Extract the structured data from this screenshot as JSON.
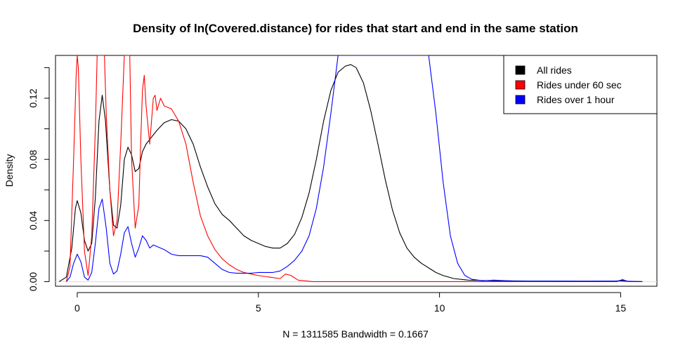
{
  "chart_data": {
    "type": "line",
    "title": "Density of ln(Covered.distance) for rides that start and end in the same station",
    "xlabel": "N = 1311585   Bandwidth = 0.1667",
    "ylabel": "Density",
    "xlim": [
      -0.6,
      16.0
    ],
    "ylim": [
      -0.003,
      0.148
    ],
    "x_ticks": [
      0,
      5,
      10,
      15
    ],
    "x_tick_labels": [
      "0",
      "5",
      "10",
      "15"
    ],
    "y_ticks": [
      0.0,
      0.04,
      0.08,
      0.12
    ],
    "y_tick_labels": [
      "0.00",
      "0.04",
      "0.08",
      "0.12"
    ],
    "grid": false,
    "legend_position": "top-right",
    "series": [
      {
        "name": "All rides",
        "color": "#000000",
        "points": [
          [
            -0.5,
            0.0
          ],
          [
            -0.3,
            0.003
          ],
          [
            -0.15,
            0.022
          ],
          [
            -0.05,
            0.048
          ],
          [
            0.0,
            0.053
          ],
          [
            0.1,
            0.045
          ],
          [
            0.2,
            0.027
          ],
          [
            0.3,
            0.02
          ],
          [
            0.4,
            0.025
          ],
          [
            0.5,
            0.055
          ],
          [
            0.6,
            0.105
          ],
          [
            0.69,
            0.122
          ],
          [
            0.78,
            0.105
          ],
          [
            0.9,
            0.06
          ],
          [
            1.0,
            0.037
          ],
          [
            1.1,
            0.035
          ],
          [
            1.2,
            0.05
          ],
          [
            1.3,
            0.08
          ],
          [
            1.4,
            0.088
          ],
          [
            1.5,
            0.083
          ],
          [
            1.6,
            0.072
          ],
          [
            1.7,
            0.074
          ],
          [
            1.8,
            0.085
          ],
          [
            1.9,
            0.09
          ],
          [
            2.0,
            0.093
          ],
          [
            2.2,
            0.099
          ],
          [
            2.4,
            0.104
          ],
          [
            2.6,
            0.106
          ],
          [
            2.8,
            0.105
          ],
          [
            3.0,
            0.1
          ],
          [
            3.2,
            0.09
          ],
          [
            3.4,
            0.075
          ],
          [
            3.6,
            0.062
          ],
          [
            3.8,
            0.051
          ],
          [
            4.0,
            0.044
          ],
          [
            4.2,
            0.04
          ],
          [
            4.4,
            0.035
          ],
          [
            4.6,
            0.03
          ],
          [
            4.8,
            0.027
          ],
          [
            5.0,
            0.025
          ],
          [
            5.2,
            0.023
          ],
          [
            5.4,
            0.022
          ],
          [
            5.6,
            0.022
          ],
          [
            5.8,
            0.025
          ],
          [
            6.0,
            0.031
          ],
          [
            6.2,
            0.042
          ],
          [
            6.4,
            0.058
          ],
          [
            6.6,
            0.08
          ],
          [
            6.8,
            0.105
          ],
          [
            7.0,
            0.125
          ],
          [
            7.2,
            0.137
          ],
          [
            7.4,
            0.141
          ],
          [
            7.55,
            0.142
          ],
          [
            7.7,
            0.14
          ],
          [
            7.9,
            0.13
          ],
          [
            8.1,
            0.112
          ],
          [
            8.3,
            0.09
          ],
          [
            8.5,
            0.067
          ],
          [
            8.7,
            0.047
          ],
          [
            8.9,
            0.032
          ],
          [
            9.1,
            0.022
          ],
          [
            9.3,
            0.016
          ],
          [
            9.5,
            0.012
          ],
          [
            9.7,
            0.009
          ],
          [
            9.9,
            0.006
          ],
          [
            10.1,
            0.004
          ],
          [
            10.4,
            0.002
          ],
          [
            10.8,
            0.001
          ],
          [
            11.5,
            0.0006
          ],
          [
            12.5,
            0.0004
          ],
          [
            13.5,
            0.0003
          ],
          [
            14.5,
            0.0003
          ],
          [
            15.0,
            0.0005
          ],
          [
            15.2,
            0.0002
          ],
          [
            15.6,
            0.0
          ]
        ]
      },
      {
        "name": "Rides under 60 sec",
        "color": "#ff0000",
        "points": [
          [
            -0.3,
            0.0
          ],
          [
            -0.2,
            0.01
          ],
          [
            -0.1,
            0.08
          ],
          [
            -0.03,
            0.135
          ],
          [
            0.0,
            0.148
          ],
          [
            0.03,
            0.14
          ],
          [
            0.1,
            0.08
          ],
          [
            0.2,
            0.02
          ],
          [
            0.3,
            0.004
          ],
          [
            0.4,
            0.03
          ],
          [
            0.5,
            0.1
          ],
          [
            0.55,
            0.148
          ],
          [
            0.75,
            0.148
          ],
          [
            0.8,
            0.11
          ],
          [
            0.9,
            0.06
          ],
          [
            1.0,
            0.03
          ],
          [
            1.1,
            0.04
          ],
          [
            1.2,
            0.09
          ],
          [
            1.3,
            0.148
          ],
          [
            1.45,
            0.148
          ],
          [
            1.5,
            0.08
          ],
          [
            1.6,
            0.035
          ],
          [
            1.7,
            0.05
          ],
          [
            1.75,
            0.09
          ],
          [
            1.8,
            0.125
          ],
          [
            1.85,
            0.135
          ],
          [
            1.9,
            0.115
          ],
          [
            2.0,
            0.09
          ],
          [
            2.05,
            0.105
          ],
          [
            2.1,
            0.12
          ],
          [
            2.15,
            0.122
          ],
          [
            2.2,
            0.112
          ],
          [
            2.3,
            0.12
          ],
          [
            2.4,
            0.115
          ],
          [
            2.5,
            0.114
          ],
          [
            2.6,
            0.113
          ],
          [
            2.8,
            0.105
          ],
          [
            3.0,
            0.09
          ],
          [
            3.2,
            0.065
          ],
          [
            3.4,
            0.043
          ],
          [
            3.6,
            0.03
          ],
          [
            3.8,
            0.021
          ],
          [
            4.0,
            0.015
          ],
          [
            4.2,
            0.011
          ],
          [
            4.4,
            0.008
          ],
          [
            4.6,
            0.006
          ],
          [
            4.8,
            0.005
          ],
          [
            5.0,
            0.004
          ],
          [
            5.3,
            0.003
          ],
          [
            5.6,
            0.002
          ],
          [
            5.75,
            0.005
          ],
          [
            5.9,
            0.004
          ],
          [
            6.1,
            0.001
          ],
          [
            6.5,
            0.0
          ],
          [
            10.0,
            0.0
          ],
          [
            14.9,
            0.0
          ],
          [
            15.05,
            0.0015
          ],
          [
            15.2,
            0.0
          ],
          [
            15.6,
            0.0
          ]
        ]
      },
      {
        "name": "Rides over 1 hour",
        "color": "#0000ff",
        "points": [
          [
            -0.3,
            0.0
          ],
          [
            -0.2,
            0.003
          ],
          [
            -0.1,
            0.012
          ],
          [
            0.0,
            0.018
          ],
          [
            0.1,
            0.013
          ],
          [
            0.2,
            0.003
          ],
          [
            0.3,
            0.001
          ],
          [
            0.4,
            0.006
          ],
          [
            0.5,
            0.025
          ],
          [
            0.6,
            0.048
          ],
          [
            0.69,
            0.054
          ],
          [
            0.8,
            0.035
          ],
          [
            0.9,
            0.012
          ],
          [
            1.0,
            0.005
          ],
          [
            1.1,
            0.007
          ],
          [
            1.2,
            0.018
          ],
          [
            1.3,
            0.032
          ],
          [
            1.4,
            0.036
          ],
          [
            1.5,
            0.025
          ],
          [
            1.6,
            0.016
          ],
          [
            1.7,
            0.022
          ],
          [
            1.8,
            0.03
          ],
          [
            1.9,
            0.027
          ],
          [
            2.0,
            0.022
          ],
          [
            2.1,
            0.024
          ],
          [
            2.2,
            0.023
          ],
          [
            2.4,
            0.021
          ],
          [
            2.6,
            0.018
          ],
          [
            2.8,
            0.017
          ],
          [
            3.0,
            0.017
          ],
          [
            3.2,
            0.017
          ],
          [
            3.4,
            0.017
          ],
          [
            3.6,
            0.016
          ],
          [
            3.8,
            0.012
          ],
          [
            4.0,
            0.008
          ],
          [
            4.2,
            0.006
          ],
          [
            4.4,
            0.0055
          ],
          [
            4.6,
            0.0055
          ],
          [
            4.8,
            0.0055
          ],
          [
            5.0,
            0.006
          ],
          [
            5.2,
            0.006
          ],
          [
            5.4,
            0.006
          ],
          [
            5.6,
            0.007
          ],
          [
            5.8,
            0.01
          ],
          [
            6.0,
            0.014
          ],
          [
            6.2,
            0.02
          ],
          [
            6.4,
            0.03
          ],
          [
            6.6,
            0.048
          ],
          [
            6.8,
            0.075
          ],
          [
            7.0,
            0.11
          ],
          [
            7.2,
            0.148
          ],
          [
            9.7,
            0.148
          ],
          [
            9.9,
            0.11
          ],
          [
            10.1,
            0.065
          ],
          [
            10.3,
            0.03
          ],
          [
            10.5,
            0.012
          ],
          [
            10.7,
            0.004
          ],
          [
            10.9,
            0.0015
          ],
          [
            11.2,
            0.0006
          ],
          [
            11.5,
            0.001
          ],
          [
            12.0,
            0.0005
          ],
          [
            13.0,
            0.0004
          ],
          [
            14.0,
            0.0003
          ],
          [
            14.9,
            0.0004
          ],
          [
            15.05,
            0.001
          ],
          [
            15.2,
            0.0003
          ],
          [
            15.6,
            0.0
          ]
        ]
      }
    ]
  }
}
